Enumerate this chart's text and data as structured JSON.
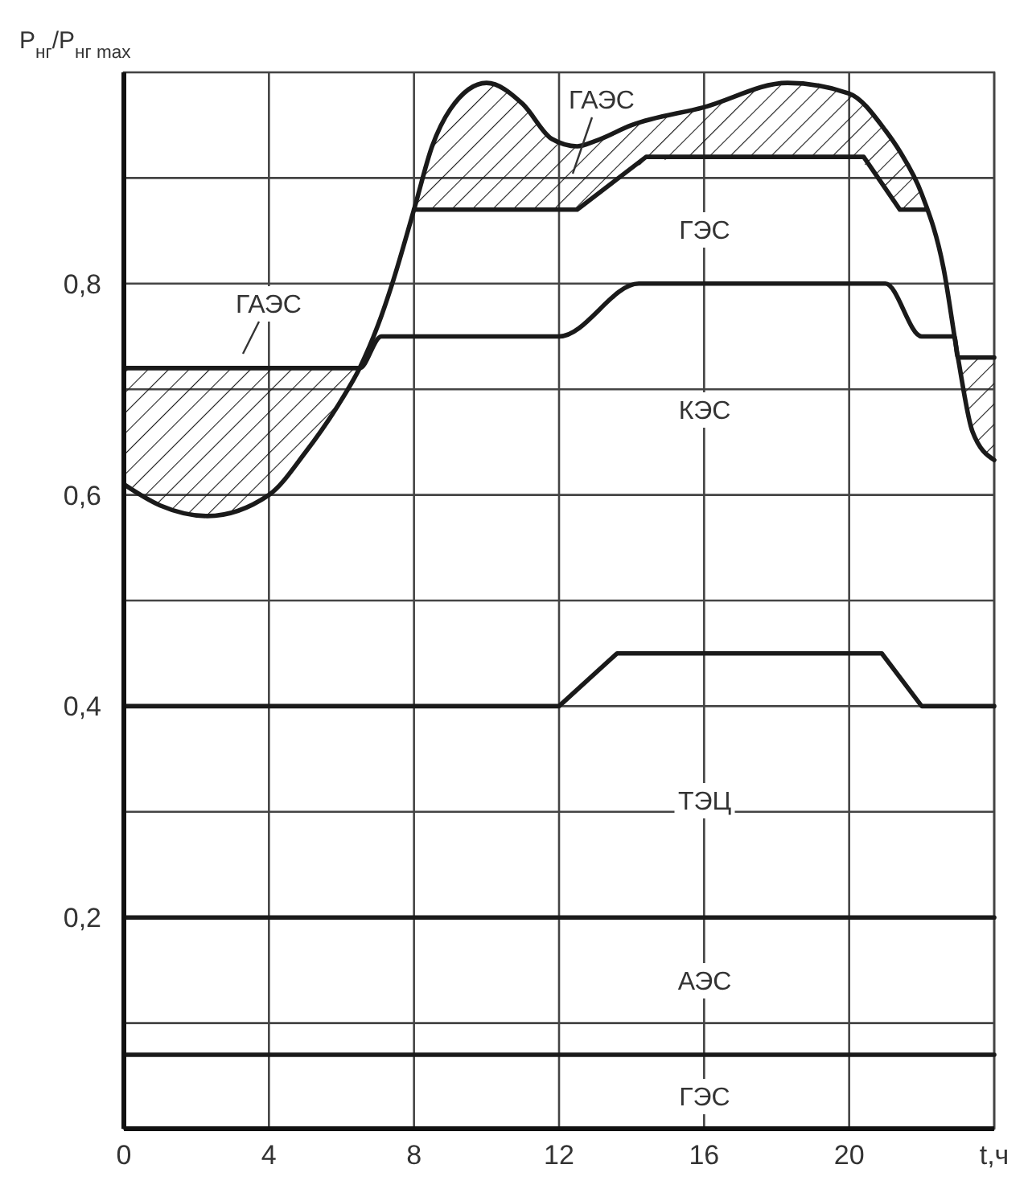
{
  "chart_data": {
    "type": "line",
    "ylabel": "P$_{нг}$/P$_{нг max}$",
    "xlim": [
      0,
      24
    ],
    "ylim": [
      0,
      1
    ],
    "xticks": [
      0,
      4,
      8,
      12,
      16,
      20,
      {
        "value": 24,
        "label": "t,ч"
      }
    ],
    "yticks": [
      {
        "value": 0.1,
        "label": null
      },
      {
        "value": 0.2,
        "label": "0,2"
      },
      {
        "value": 0.3,
        "label": null
      },
      {
        "value": 0.4,
        "label": "0,4"
      },
      {
        "value": 0.5,
        "label": null
      },
      {
        "value": 0.6,
        "label": "0,6"
      },
      {
        "value": 0.7,
        "label": null
      },
      {
        "value": 0.8,
        "label": "0,8"
      },
      {
        "value": 0.9,
        "label": null
      }
    ],
    "grid": true,
    "series": [
      {
        "color": "#1a1a1a",
        "x": [
          0,
          1,
          2.3,
          4,
          5,
          6,
          6.5,
          7,
          7.4,
          8,
          8.5,
          9,
          10,
          11,
          11.8,
          12.5,
          13,
          14,
          16,
          18.3,
          20,
          21,
          21.4,
          22,
          22.6,
          23,
          23.4,
          24
        ],
        "values": [
          0.61,
          0.59,
          0.58,
          0.6,
          0.64,
          0.69,
          0.72,
          0.76,
          0.8,
          0.87,
          0.93,
          0.965,
          0.99,
          0.97,
          0.937,
          0.93,
          0.935,
          0.95,
          0.967,
          0.99,
          0.98,
          0.945,
          0.925,
          0.885,
          0.815,
          0.73,
          0.66,
          0.633
        ],
        "lower": [
          0.61,
          0.59,
          0.58,
          0.6,
          0.64,
          0.69,
          0.72,
          null,
          null,
          0.87,
          0.87,
          0.87,
          0.87,
          0.87,
          0.87,
          0.87,
          0.885,
          0.91,
          0.92,
          0.92,
          0.92,
          0.89,
          0.87,
          0.87,
          null,
          0.73,
          0.66,
          0.633
        ],
        "upper": [
          0.72,
          0.72,
          0.72,
          0.72,
          0.72,
          0.72,
          0.72,
          null,
          null,
          0.87,
          0.93,
          0.965,
          0.99,
          0.97,
          0.937,
          0.93,
          0.935,
          0.95,
          0.967,
          0.99,
          0.98,
          0.945,
          0.925,
          0.885,
          null,
          0.73,
          0.73,
          0.73
        ]
      },
      {
        "color": "#1a1a1a",
        "x": [
          8,
          12.5,
          14.4,
          20.4,
          21.4,
          22.1
        ],
        "values": [
          0.87,
          0.87,
          0.92,
          0.92,
          0.87,
          0.87
        ]
      },
      {
        "color": "#1a1a1a",
        "x": [
          0,
          6.5,
          7.1,
          12,
          14.2,
          21,
          22,
          22.9,
          23,
          24
        ],
        "values": [
          0.72,
          0.72,
          0.75,
          0.75,
          0.8,
          0.8,
          0.75,
          0.75,
          0.73,
          0.73
        ]
      },
      {
        "color": "#1a1a1a",
        "x": [
          0,
          12,
          13.6,
          20.9,
          22,
          24
        ],
        "values": [
          0.4,
          0.4,
          0.45,
          0.45,
          0.4,
          0.4
        ]
      },
      {
        "color": "#1a1a1a",
        "x": [
          0,
          24
        ],
        "values": [
          0.2,
          0.2
        ]
      },
      {
        "color": "#1a1a1a",
        "x": [
          0,
          24
        ],
        "values": [
          0.07,
          0.07
        ]
      }
    ],
    "annotations": [
      "ГАЭС",
      "ГАЭС",
      "ГЭС",
      "КЭС",
      "ТЭЦ",
      "АЭС",
      "ГЭС"
    ]
  }
}
